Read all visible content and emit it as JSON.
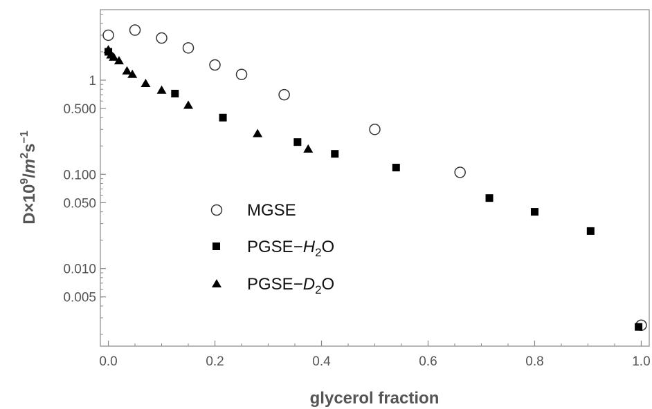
{
  "chart_data": {
    "type": "scatter",
    "xlabel": "glycerol fraction",
    "ylabel": {
      "prefix": "D×10",
      "exp1": "9",
      "mid": "/",
      "unit1": "m",
      "exp2": "2",
      "unit2": "s",
      "exp3": "−1"
    },
    "x_scale": "linear",
    "y_scale": "log",
    "xlim": [
      -0.015,
      1.015
    ],
    "ylim": [
      0.0015,
      5.6
    ],
    "x_ticks": [
      "0.0",
      "0.2",
      "0.4",
      "0.6",
      "0.8",
      "1.0"
    ],
    "x_tick_values": [
      0,
      0.2,
      0.4,
      0.6,
      0.8,
      1.0
    ],
    "y_ticks": [
      "0.005",
      "0.010",
      "0.050",
      "0.100",
      "0.500",
      "1"
    ],
    "y_tick_values": [
      0.005,
      0.01,
      0.05,
      0.1,
      0.5,
      1
    ],
    "legend": {
      "position": "center-left",
      "entries": [
        {
          "symbol": "circle",
          "prefix": "MGSE",
          "italic": "",
          "sub": "",
          "suffix": ""
        },
        {
          "symbol": "square",
          "prefix": "PGSE−",
          "italic": "H",
          "sub": "2",
          "suffix": "O"
        },
        {
          "symbol": "triangle",
          "prefix": "PGSE−",
          "italic": "D",
          "sub": "2",
          "suffix": "O"
        }
      ]
    },
    "series": [
      {
        "name": "MGSE",
        "marker": "open-circle",
        "color": "#333333",
        "x": [
          0.0,
          0.05,
          0.1,
          0.15,
          0.2,
          0.25,
          0.33,
          0.5,
          0.66,
          1.0
        ],
        "y": [
          3.0,
          3.4,
          2.8,
          2.2,
          1.45,
          1.15,
          0.7,
          0.3,
          0.105,
          0.0025
        ]
      },
      {
        "name": "PGSE−H2O",
        "marker": "filled-square",
        "color": "#000000",
        "x": [
          0.0,
          0.125,
          0.215,
          0.355,
          0.425,
          0.54,
          0.715,
          0.8,
          0.905,
          0.995
        ],
        "y": [
          2.0,
          0.72,
          0.4,
          0.22,
          0.165,
          0.118,
          0.056,
          0.04,
          0.025,
          0.0024
        ]
      },
      {
        "name": "PGSE−D2O",
        "marker": "filled-triangle",
        "color": "#000000",
        "x": [
          0.0,
          0.005,
          0.01,
          0.02,
          0.035,
          0.045,
          0.07,
          0.1,
          0.15,
          0.28,
          0.375
        ],
        "y": [
          2.1,
          1.85,
          1.75,
          1.6,
          1.25,
          1.15,
          0.92,
          0.78,
          0.54,
          0.27,
          0.185
        ]
      }
    ]
  }
}
